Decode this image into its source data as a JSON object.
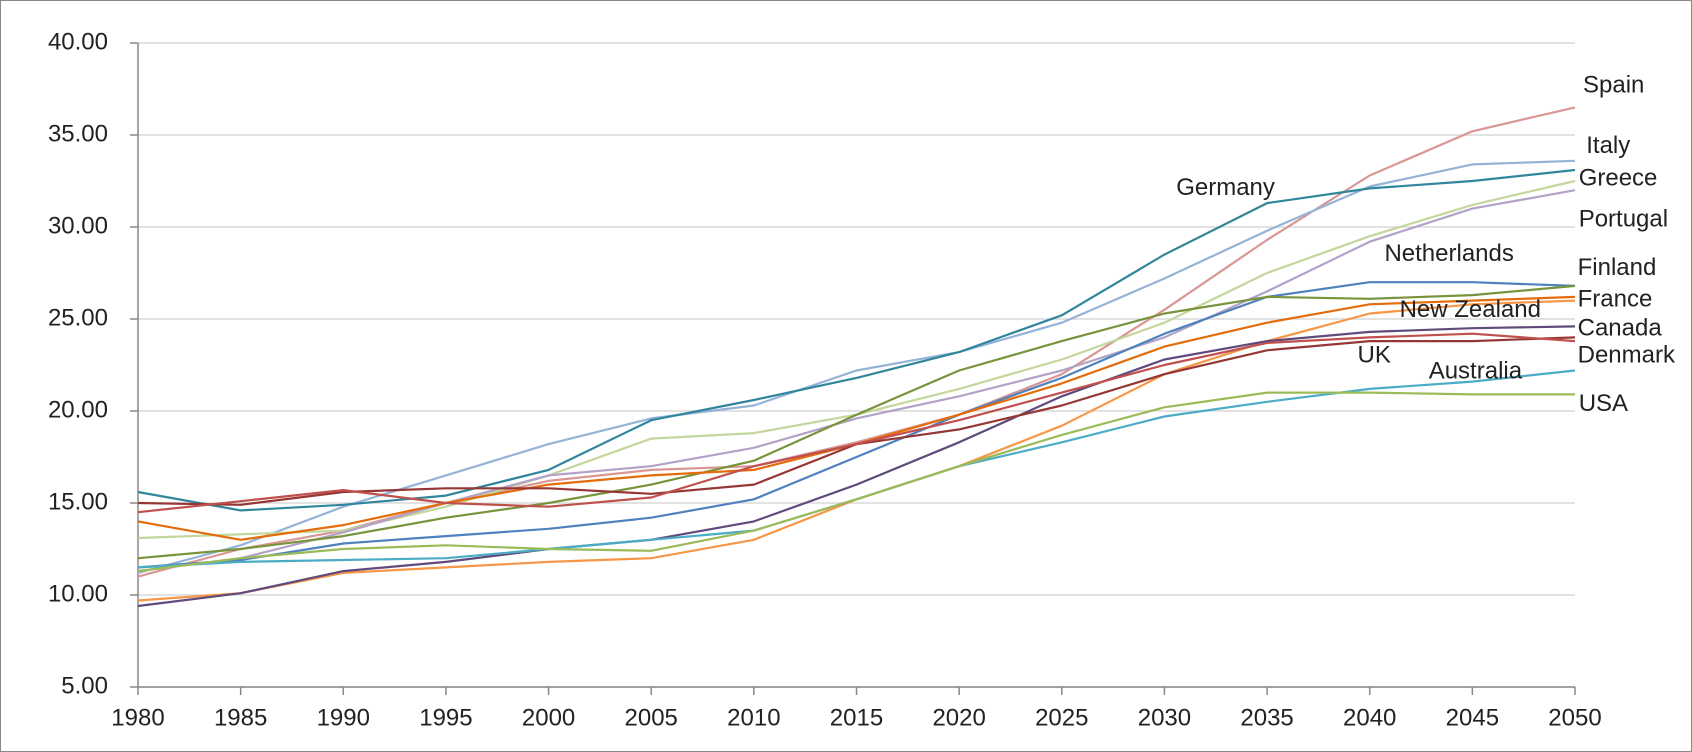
{
  "chart_data": {
    "type": "line",
    "x": [
      1980,
      1985,
      1990,
      1995,
      2000,
      2005,
      2010,
      2015,
      2020,
      2025,
      2030,
      2035,
      2040,
      2045,
      2050
    ],
    "xlim": [
      1980,
      2050
    ],
    "xticks": [
      1980,
      1985,
      1990,
      1995,
      2000,
      2005,
      2010,
      2015,
      2020,
      2025,
      2030,
      2035,
      2040,
      2045,
      2050
    ],
    "ylim": [
      5,
      40
    ],
    "yticks": [
      {
        "value": 5,
        "label": "5.00"
      },
      {
        "value": 10,
        "label": "10.00"
      },
      {
        "value": 15,
        "label": "15.00"
      },
      {
        "value": 20,
        "label": "20.00"
      },
      {
        "value": 25,
        "label": "25.00"
      },
      {
        "value": 30,
        "label": "30.00"
      },
      {
        "value": 35,
        "label": "35.00"
      },
      {
        "value": 40,
        "label": "40.00"
      }
    ],
    "grid": true,
    "series": [
      {
        "name": "Spain",
        "color": "#d99694",
        "values": [
          11.0,
          12.5,
          13.5,
          15.0,
          16.2,
          16.8,
          17.0,
          18.3,
          19.8,
          22.0,
          25.5,
          29.3,
          32.8,
          35.2,
          36.5
        ]
      },
      {
        "name": "Italy",
        "color": "#95b3d7",
        "values": [
          11.2,
          12.7,
          14.8,
          16.5,
          18.2,
          19.6,
          20.3,
          22.2,
          23.2,
          24.8,
          27.2,
          29.8,
          32.2,
          33.4,
          33.6
        ]
      },
      {
        "name": "Greece",
        "color": "#c3d69b",
        "values": [
          13.1,
          13.3,
          13.5,
          14.8,
          16.5,
          18.5,
          18.8,
          19.8,
          21.2,
          22.8,
          24.8,
          27.5,
          29.5,
          31.2,
          32.5
        ]
      },
      {
        "name": "Portugal",
        "color": "#b3a2c7",
        "values": [
          11.3,
          12.0,
          13.4,
          15.0,
          16.5,
          17.0,
          18.0,
          19.6,
          20.8,
          22.2,
          24.0,
          26.5,
          29.2,
          31.0,
          32.0
        ]
      },
      {
        "name": "Germany",
        "color": "#31859c",
        "values": [
          15.6,
          14.6,
          14.9,
          15.4,
          16.8,
          19.5,
          20.6,
          21.8,
          23.2,
          25.2,
          28.5,
          31.3,
          32.1,
          32.5,
          33.1
        ]
      },
      {
        "name": "Netherlands",
        "color": "#4f81bd",
        "values": [
          11.5,
          11.9,
          12.8,
          13.2,
          13.6,
          14.2,
          15.2,
          17.5,
          19.8,
          21.8,
          24.2,
          26.2,
          27.0,
          27.0,
          26.8
        ]
      },
      {
        "name": "Finland",
        "color": "#77933c",
        "values": [
          12.0,
          12.5,
          13.2,
          14.2,
          15.0,
          16.0,
          17.3,
          19.8,
          22.2,
          23.8,
          25.3,
          26.2,
          26.1,
          26.3,
          26.8
        ]
      },
      {
        "name": "France",
        "color": "#e46c0a",
        "values": [
          14.0,
          13.0,
          13.8,
          15.0,
          16.0,
          16.5,
          16.8,
          18.2,
          19.8,
          21.5,
          23.5,
          24.8,
          25.8,
          26.0,
          26.2
        ]
      },
      {
        "name": "New Zealand",
        "color": "#f79646",
        "values": [
          9.7,
          10.1,
          11.2,
          11.5,
          11.8,
          12.0,
          13.0,
          15.2,
          17.0,
          19.2,
          22.0,
          23.8,
          25.3,
          25.8,
          26.0
        ]
      },
      {
        "name": "Canada",
        "color": "#604a7b",
        "values": [
          9.4,
          10.1,
          11.3,
          11.8,
          12.5,
          13.0,
          14.0,
          16.0,
          18.3,
          20.8,
          22.8,
          23.8,
          24.3,
          24.5,
          24.6
        ]
      },
      {
        "name": "Denmark",
        "color": "#953735",
        "values": [
          15.0,
          14.9,
          15.6,
          15.8,
          15.8,
          15.5,
          16.0,
          18.2,
          19.0,
          20.3,
          22.0,
          23.3,
          23.8,
          23.8,
          24.0
        ]
      },
      {
        "name": "UK",
        "color": "#c0504d",
        "values": [
          14.5,
          15.1,
          15.7,
          15.0,
          14.8,
          15.3,
          17.0,
          18.2,
          19.5,
          21.0,
          22.5,
          23.7,
          24.0,
          24.2,
          23.8
        ]
      },
      {
        "name": "Australia",
        "color": "#4bacc6",
        "values": [
          11.5,
          11.8,
          11.9,
          12.0,
          12.5,
          13.0,
          13.5,
          15.2,
          17.0,
          18.3,
          19.7,
          20.5,
          21.2,
          21.6,
          22.2
        ]
      },
      {
        "name": "USA",
        "color": "#9bbb59",
        "values": [
          11.3,
          12.0,
          12.5,
          12.7,
          12.5,
          12.4,
          13.5,
          15.2,
          17.0,
          18.7,
          20.2,
          21.0,
          21.0,
          20.9,
          20.9
        ]
      }
    ]
  }
}
